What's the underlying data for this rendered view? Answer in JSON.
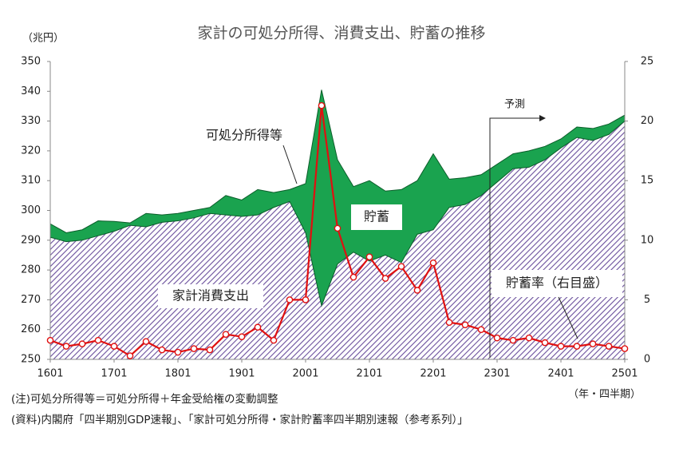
{
  "chart_data": {
    "type": "area-line",
    "title": "家計の可処分所得、消費支出、貯蓄の推移",
    "y_label": "（兆円）",
    "x_label": "（年・四半期）",
    "notes": [
      "(注)可処分所得等＝可処分所得＋年金受給権の変動調整",
      "(資料)内閣府「四半期別GDP速報」、「家計可処分所得・家計貯蓄率四半期別速報（参考系列）」"
    ],
    "annotations": {
      "income": "可処分所得等",
      "saving": "貯蓄",
      "consumption": "家計消費支出",
      "rate": "貯蓄率（右目盛）",
      "forecast": "予測"
    },
    "categories": [
      "1601",
      null,
      null,
      null,
      "1701",
      null,
      null,
      null,
      "1801",
      null,
      null,
      null,
      "1901",
      null,
      null,
      null,
      "2001",
      null,
      null,
      null,
      "2101",
      null,
      null,
      null,
      "2201",
      null,
      null,
      null,
      "2301",
      null,
      null,
      null,
      "2401",
      null,
      null,
      null,
      "2501"
    ],
    "series": [
      {
        "name": "可処分所得等",
        "color": "#1aa34f",
        "values": [
          295.5,
          292.5,
          293.5,
          296.5,
          296.3,
          295.8,
          299,
          298.5,
          299,
          300,
          301,
          305,
          303.5,
          307,
          306,
          307,
          309,
          340.5,
          317,
          308,
          310,
          306.5,
          307,
          310,
          319,
          310.5,
          311,
          312,
          315.5,
          319,
          320,
          321.5,
          324,
          328,
          327.5,
          329,
          332
        ]
      },
      {
        "name": "家計消費支出",
        "color": "#6a4f9c",
        "values": [
          291,
          289.5,
          290,
          291.5,
          293,
          295,
          294.5,
          296,
          296.5,
          297.5,
          299,
          298.5,
          298,
          298.5,
          301,
          303,
          292.5,
          268,
          282,
          286,
          283,
          285,
          282.5,
          292,
          293.5,
          301,
          302,
          305,
          309.5,
          314,
          314.5,
          317,
          321,
          324.5,
          323.5,
          325.5,
          330
        ]
      },
      {
        "name": "貯蓄率（右目盛）",
        "color": "#e01010",
        "axis": "y2",
        "values": [
          1.6,
          1.1,
          1.3,
          1.6,
          1.1,
          0.3,
          1.5,
          0.8,
          0.6,
          0.9,
          0.8,
          2.1,
          1.9,
          2.7,
          1.6,
          5.0,
          5.0,
          21.3,
          11.0,
          6.9,
          8.6,
          6.8,
          7.8,
          5.8,
          8.1,
          3.1,
          2.9,
          2.5,
          1.8,
          1.6,
          1.8,
          1.4,
          1.1,
          1.1,
          1.3,
          1.1,
          0.9
        ]
      }
    ],
    "ylim": [
      250,
      350
    ],
    "yticks": [
      250,
      260,
      270,
      280,
      290,
      300,
      310,
      320,
      330,
      340,
      350
    ],
    "y2lim": [
      0,
      25
    ],
    "y2ticks": [
      0,
      5,
      10,
      15,
      20,
      25
    ]
  }
}
